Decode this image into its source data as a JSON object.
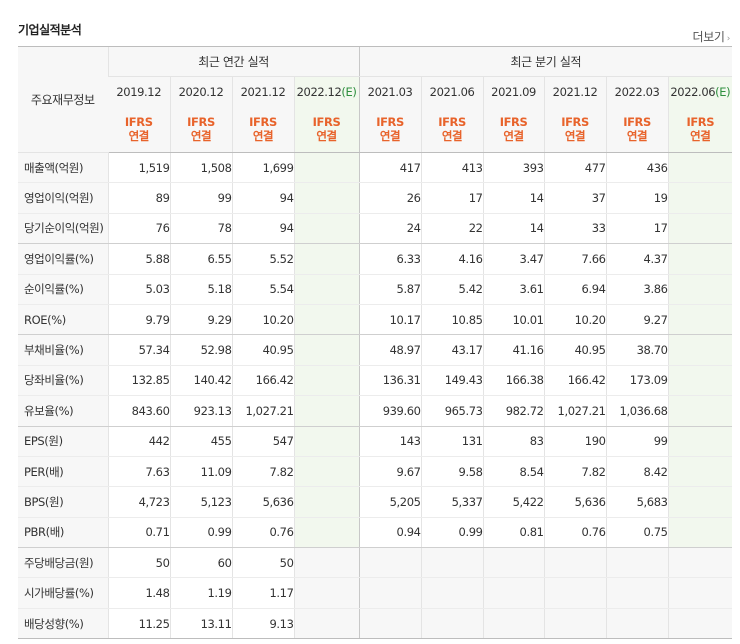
{
  "section_title": "기업실적분석",
  "more_link": "더보기",
  "more_arrow": "›",
  "corner_label": "주요재무정보",
  "group_headers": {
    "annual": "최근 연간 실적",
    "quarterly": "최근 분기 실적"
  },
  "periods": [
    {
      "label": "2019.12",
      "est_mark": "",
      "std1": "IFRS",
      "std2": "연결"
    },
    {
      "label": "2020.12",
      "est_mark": "",
      "std1": "IFRS",
      "std2": "연결"
    },
    {
      "label": "2021.12",
      "est_mark": "",
      "std1": "IFRS",
      "std2": "연결"
    },
    {
      "label": "2022.12",
      "est_mark": "(E)",
      "std1": "IFRS",
      "std2": "연결"
    },
    {
      "label": "2021.03",
      "est_mark": "",
      "std1": "IFRS",
      "std2": "연결"
    },
    {
      "label": "2021.06",
      "est_mark": "",
      "std1": "IFRS",
      "std2": "연결"
    },
    {
      "label": "2021.09",
      "est_mark": "",
      "std1": "IFRS",
      "std2": "연결"
    },
    {
      "label": "2021.12",
      "est_mark": "",
      "std1": "IFRS",
      "std2": "연결"
    },
    {
      "label": "2022.03",
      "est_mark": "",
      "std1": "IFRS",
      "std2": "연결"
    },
    {
      "label": "2022.06",
      "est_mark": "(E)",
      "std1": "IFRS",
      "std2": "연결"
    }
  ],
  "rows": [
    {
      "label": "매출액(억원)",
      "values": [
        "1,519",
        "1,508",
        "1,699",
        "",
        "417",
        "413",
        "393",
        "477",
        "436",
        ""
      ]
    },
    {
      "label": "영업이익(억원)",
      "values": [
        "89",
        "99",
        "94",
        "",
        "26",
        "17",
        "14",
        "37",
        "19",
        ""
      ]
    },
    {
      "label": "당기순이익(억원)",
      "values": [
        "76",
        "78",
        "94",
        "",
        "24",
        "22",
        "14",
        "33",
        "17",
        ""
      ]
    },
    {
      "label": "영업이익률(%)",
      "values": [
        "5.88",
        "6.55",
        "5.52",
        "",
        "6.33",
        "4.16",
        "3.47",
        "7.66",
        "4.37",
        ""
      ]
    },
    {
      "label": "순이익률(%)",
      "values": [
        "5.03",
        "5.18",
        "5.54",
        "",
        "5.87",
        "5.42",
        "3.61",
        "6.94",
        "3.86",
        ""
      ]
    },
    {
      "label": "ROE(%)",
      "values": [
        "9.79",
        "9.29",
        "10.20",
        "",
        "10.17",
        "10.85",
        "10.01",
        "10.20",
        "9.27",
        ""
      ]
    },
    {
      "label": "부채비율(%)",
      "values": [
        "57.34",
        "52.98",
        "40.95",
        "",
        "48.97",
        "43.17",
        "41.16",
        "40.95",
        "38.70",
        ""
      ]
    },
    {
      "label": "당좌비율(%)",
      "values": [
        "132.85",
        "140.42",
        "166.42",
        "",
        "136.31",
        "149.43",
        "166.38",
        "166.42",
        "173.09",
        ""
      ]
    },
    {
      "label": "유보율(%)",
      "values": [
        "843.60",
        "923.13",
        "1,027.21",
        "",
        "939.60",
        "965.73",
        "982.72",
        "1,027.21",
        "1,036.68",
        ""
      ]
    },
    {
      "label": "EPS(원)",
      "values": [
        "442",
        "455",
        "547",
        "",
        "143",
        "131",
        "83",
        "190",
        "99",
        ""
      ]
    },
    {
      "label": "PER(배)",
      "values": [
        "7.63",
        "11.09",
        "7.82",
        "",
        "9.67",
        "9.58",
        "8.54",
        "7.82",
        "8.42",
        ""
      ]
    },
    {
      "label": "BPS(원)",
      "values": [
        "4,723",
        "5,123",
        "5,636",
        "",
        "5,205",
        "5,337",
        "5,422",
        "5,636",
        "5,683",
        ""
      ]
    },
    {
      "label": "PBR(배)",
      "values": [
        "0.71",
        "0.99",
        "0.76",
        "",
        "0.94",
        "0.99",
        "0.81",
        "0.76",
        "0.75",
        ""
      ]
    },
    {
      "label": "주당배당금(원)",
      "values": [
        "50",
        "60",
        "50",
        "",
        "",
        "",
        "",
        "",
        "",
        ""
      ]
    },
    {
      "label": "시가배당률(%)",
      "values": [
        "1.48",
        "1.19",
        "1.17",
        "",
        "",
        "",
        "",
        "",
        "",
        ""
      ]
    },
    {
      "label": "배당성향(%)",
      "values": [
        "11.25",
        "13.11",
        "9.13",
        "",
        "",
        "",
        "",
        "",
        "",
        ""
      ]
    }
  ]
}
